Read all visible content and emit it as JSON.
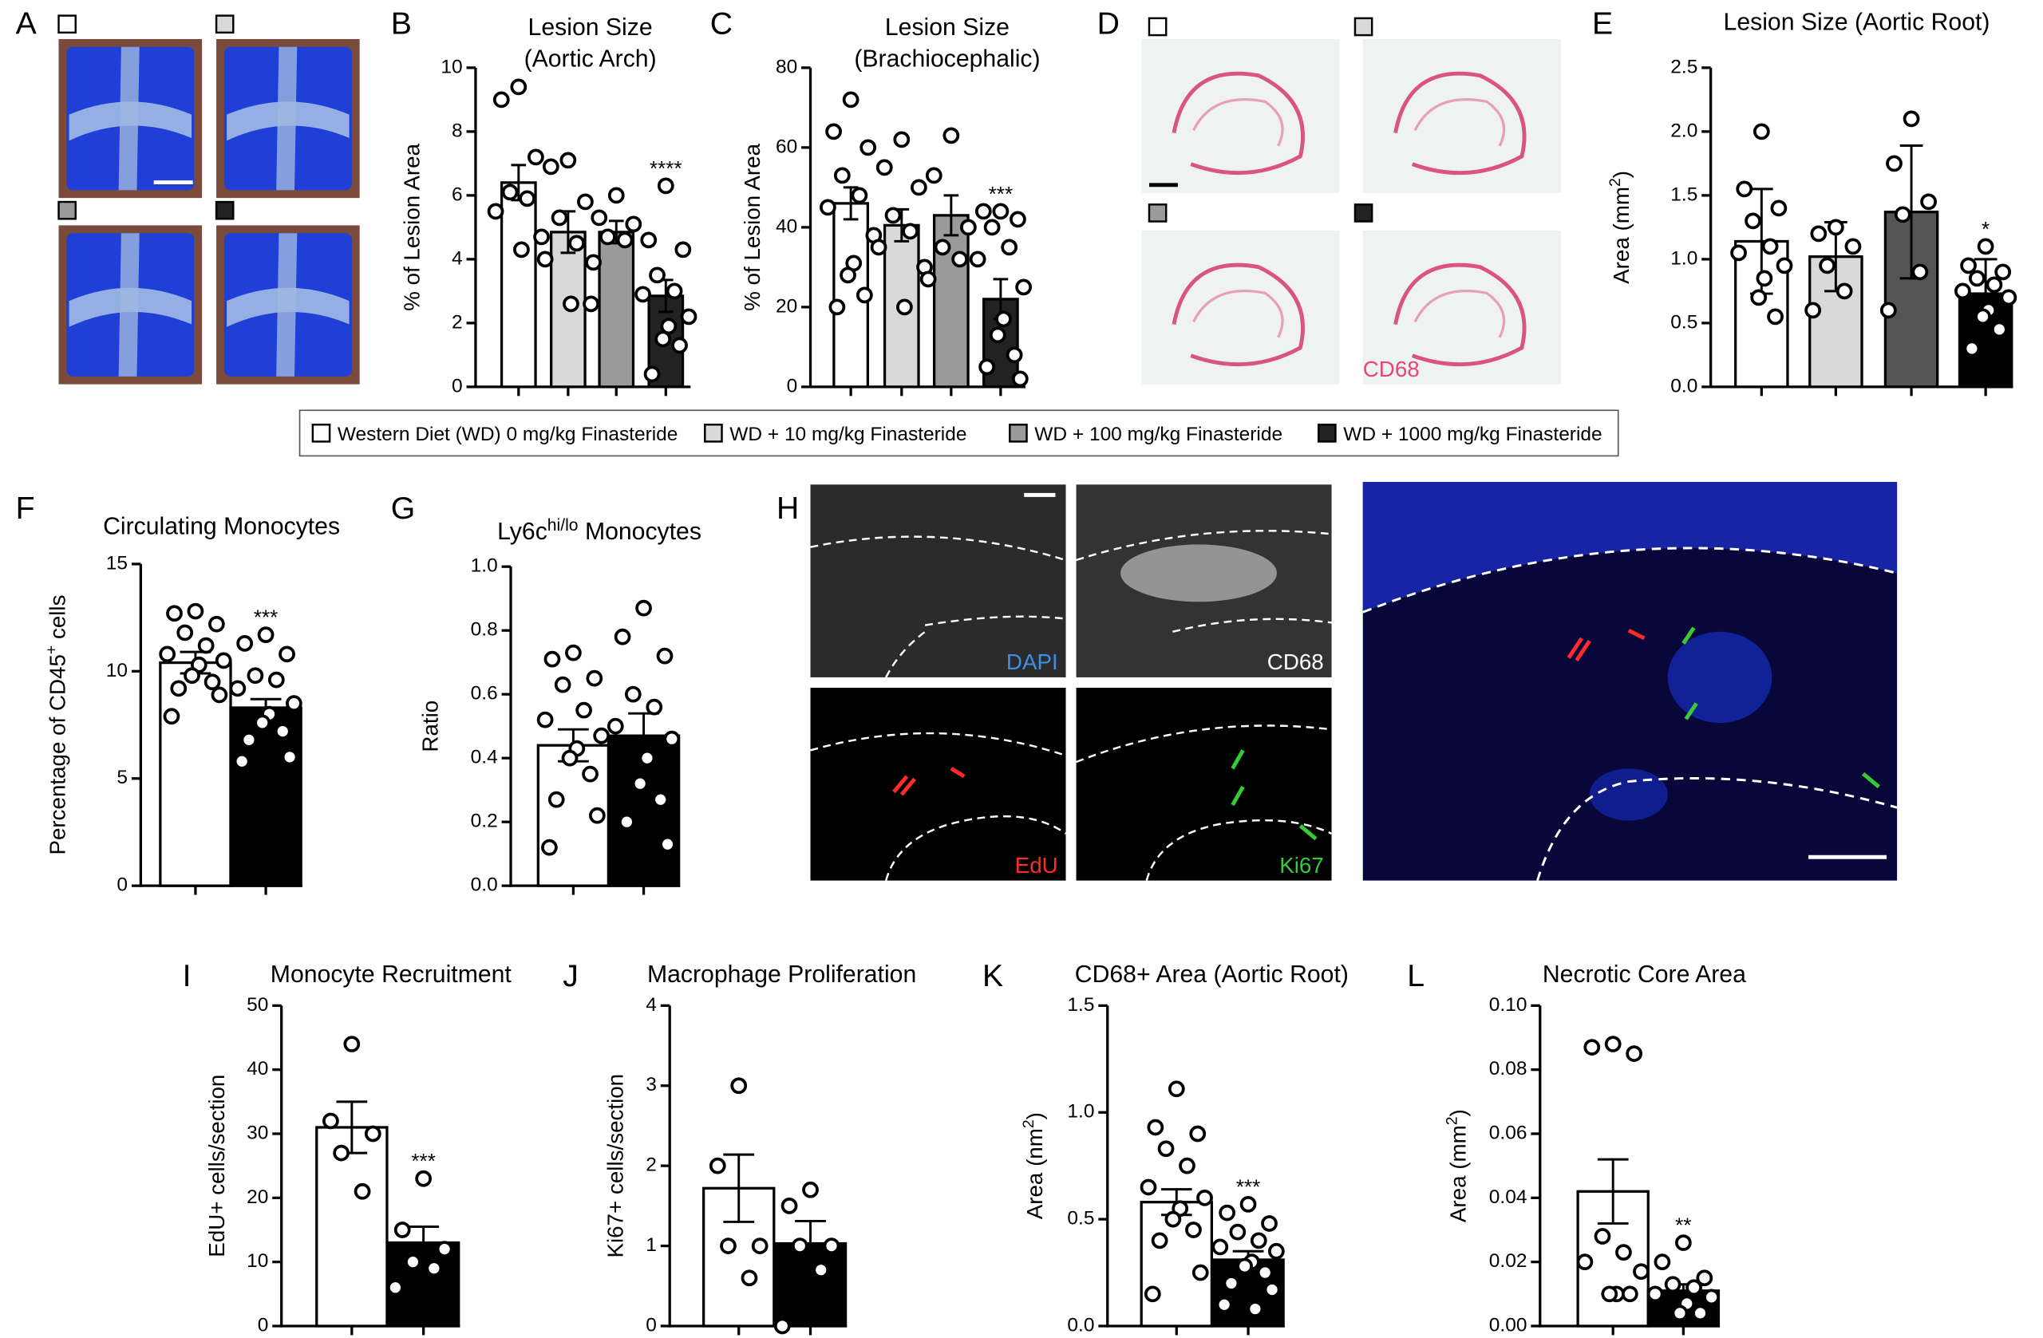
{
  "chart_data": [
    {
      "type": "bar",
      "panel": "B",
      "title_lines": [
        "Lesion Size",
        "(Aortic Arch)"
      ],
      "ylabel": "% of Lesion Area",
      "ylim": [
        0,
        10
      ],
      "yticks": [
        0,
        2,
        4,
        6,
        8,
        10
      ],
      "colors": [
        "#ffffff",
        "#d9d9d9",
        "#9a9a9a",
        "#222222"
      ],
      "values": [
        6.4,
        4.85,
        4.85,
        2.85
      ],
      "errors": [
        0.55,
        0.65,
        0.35,
        0.5
      ],
      "points": [
        [
          9.4,
          9.0,
          7.2,
          6.1,
          5.9,
          5.5,
          4.7,
          4.3
        ],
        [
          7.1,
          6.9,
          5.8,
          5.3,
          4.5,
          4.0,
          2.6,
          2.6
        ],
        [
          6.0,
          5.3,
          5.1,
          4.7,
          4.6,
          3.9
        ],
        [
          6.3,
          4.6,
          4.3,
          3.5,
          3.0,
          2.9,
          2.2,
          1.9,
          1.5,
          1.3,
          0.4
        ]
      ],
      "annotations": [
        null,
        null,
        null,
        "****"
      ]
    },
    {
      "type": "bar",
      "panel": "C",
      "title_lines": [
        "Lesion Size",
        "(Brachiocephalic)"
      ],
      "ylabel": "% of Lesion Area",
      "ylim": [
        0,
        80
      ],
      "yticks": [
        0,
        20,
        40,
        60,
        80
      ],
      "colors": [
        "#ffffff",
        "#d9d9d9",
        "#9a9a9a",
        "#222222"
      ],
      "values": [
        46,
        40.5,
        43,
        22
      ],
      "errors": [
        4,
        4,
        5,
        5
      ],
      "points": [
        [
          72,
          64,
          60,
          53,
          48,
          45,
          38,
          31,
          28,
          23,
          20
        ],
        [
          62,
          55,
          50,
          43,
          39,
          35,
          30,
          20
        ],
        [
          63,
          53,
          40,
          35,
          32,
          27
        ],
        [
          44,
          44,
          42,
          40,
          35,
          32,
          25,
          17,
          13,
          8,
          5,
          2
        ]
      ],
      "annotations": [
        null,
        null,
        null,
        "***"
      ]
    },
    {
      "type": "bar",
      "panel": "E",
      "title": "Lesion Size (Aortic Root)",
      "ylabel_parts": [
        {
          "text": "Area (mm"
        },
        {
          "text": "2",
          "sup": true
        },
        {
          "text": ")"
        }
      ],
      "ylim": [
        0,
        2.5
      ],
      "yticks": [
        {
          "value": 0,
          "label": "0.0"
        },
        0.5,
        {
          "value": 1,
          "label": "1.0"
        },
        1.5,
        {
          "value": 2,
          "label": "2.0"
        },
        2.5
      ],
      "colors": [
        "#ffffff",
        "#d9d9d9",
        "#555555",
        "#000000"
      ],
      "values": [
        1.14,
        1.02,
        1.37,
        0.73
      ],
      "errors": [
        0.41,
        0.27,
        0.52,
        0.27
      ],
      "points": [
        [
          2.0,
          1.55,
          1.4,
          1.3,
          1.1,
          1.05,
          0.95,
          0.85,
          0.7,
          0.55
        ],
        [
          1.25,
          1.2,
          1.1,
          0.95,
          0.75,
          0.6
        ],
        [
          2.1,
          1.75,
          1.45,
          1.35,
          0.9,
          0.6
        ],
        [
          1.1,
          0.95,
          0.9,
          0.85,
          0.8,
          0.75,
          0.7,
          0.6,
          0.55,
          0.45,
          0.3
        ]
      ],
      "annotations": [
        null,
        null,
        null,
        "*"
      ]
    },
    {
      "type": "bar",
      "panel": "F",
      "title": "Circulating Monocytes",
      "ylabel_parts": [
        {
          "text": "Percentage of CD45"
        },
        {
          "text": "+",
          "sup": true
        },
        {
          "text": " cells"
        }
      ],
      "ylim": [
        0,
        15
      ],
      "yticks": [
        0,
        5,
        10,
        15
      ],
      "colors": [
        "#ffffff",
        "#000000"
      ],
      "values": [
        10.4,
        8.3
      ],
      "errors": [
        0.5,
        0.4
      ],
      "points": [
        [
          12.8,
          12.7,
          12.2,
          11.8,
          11.2,
          10.8,
          10.5,
          10.3,
          9.8,
          9.5,
          9.2,
          8.9,
          7.9
        ],
        [
          11.7,
          11.3,
          10.8,
          9.8,
          9.6,
          9.2,
          8.5,
          8.0,
          7.6,
          7.2,
          6.8,
          6.0,
          5.8
        ]
      ],
      "annotations": [
        null,
        "***"
      ]
    },
    {
      "type": "bar",
      "panel": "G",
      "title_parts": [
        {
          "text": "Ly6c"
        },
        {
          "text": "hi/lo",
          "sup": true
        },
        {
          "text": " Monocytes"
        }
      ],
      "ylabel": "Ratio",
      "ylim": [
        0,
        1
      ],
      "yticks": [
        {
          "value": 0,
          "label": "0.0"
        },
        0.2,
        0.4,
        0.6,
        0.8,
        {
          "value": 1,
          "label": "1.0"
        }
      ],
      "colors": [
        "#ffffff",
        "#000000"
      ],
      "values": [
        0.44,
        0.47
      ],
      "errors": [
        0.05,
        0.07
      ],
      "points": [
        [
          0.73,
          0.71,
          0.65,
          0.63,
          0.55,
          0.52,
          0.47,
          0.43,
          0.4,
          0.35,
          0.27,
          0.22,
          0.12
        ],
        [
          0.87,
          0.78,
          0.72,
          0.6,
          0.56,
          0.5,
          0.46,
          0.4,
          0.32,
          0.27,
          0.2,
          0.13
        ]
      ],
      "annotations": [
        null,
        null
      ]
    },
    {
      "type": "bar",
      "panel": "I",
      "title": "Monocyte Recruitment",
      "ylabel": "EdU+ cells/section",
      "ylim": [
        0,
        50
      ],
      "yticks": [
        0,
        10,
        20,
        30,
        40,
        50
      ],
      "colors": [
        "#ffffff",
        "#000000"
      ],
      "values": [
        31,
        13
      ],
      "errors": [
        4,
        2.5
      ],
      "points": [
        [
          44,
          32,
          30,
          27,
          21
        ],
        [
          23,
          15,
          12,
          10,
          9,
          6
        ]
      ],
      "annotations": [
        null,
        "***"
      ]
    },
    {
      "type": "bar",
      "panel": "J",
      "title": "Macrophage Proliferation",
      "ylabel": "Ki67+ cells/section",
      "ylim": [
        0,
        4
      ],
      "yticks": [
        0,
        1,
        2,
        3,
        4
      ],
      "colors": [
        "#ffffff",
        "#000000"
      ],
      "values": [
        1.72,
        1.03
      ],
      "errors": [
        0.42,
        0.28
      ],
      "points": [
        [
          3.0,
          2.0,
          1.0,
          1.0,
          0.6
        ],
        [
          1.7,
          1.5,
          1.0,
          1.0,
          0.7,
          0.0
        ]
      ],
      "annotations": [
        null,
        null
      ]
    },
    {
      "type": "bar",
      "panel": "K",
      "title": "CD68+ Area (Aortic Root)",
      "ylabel_parts": [
        {
          "text": "Area (nm"
        },
        {
          "text": "2",
          "sup": true
        },
        {
          "text": ")"
        }
      ],
      "ylim": [
        0,
        1.5
      ],
      "yticks": [
        {
          "value": 0,
          "label": "0.0"
        },
        0.5,
        {
          "value": 1,
          "label": "1.0"
        },
        1.5
      ],
      "colors": [
        "#ffffff",
        "#000000"
      ],
      "values": [
        0.58,
        0.31
      ],
      "errors": [
        0.06,
        0.04
      ],
      "points": [
        [
          1.11,
          0.93,
          0.9,
          0.83,
          0.75,
          0.65,
          0.6,
          0.55,
          0.5,
          0.45,
          0.4,
          0.25,
          0.15
        ],
        [
          0.57,
          0.53,
          0.48,
          0.44,
          0.4,
          0.37,
          0.35,
          0.3,
          0.28,
          0.25,
          0.2,
          0.17,
          0.1,
          0.08
        ]
      ],
      "annotations": [
        null,
        "***"
      ]
    },
    {
      "type": "bar",
      "panel": "L",
      "title": "Necrotic Core Area",
      "ylabel_parts": [
        {
          "text": "Area (mm"
        },
        {
          "text": "2",
          "sup": true
        },
        {
          "text": ")"
        }
      ],
      "ylim": [
        0,
        0.1
      ],
      "yticks": [
        {
          "value": 0,
          "label": "0.00"
        },
        0.02,
        0.04,
        0.06,
        0.08,
        {
          "value": 0.1,
          "label": "0.10"
        }
      ],
      "colors": [
        "#ffffff",
        "#000000"
      ],
      "values": [
        0.042,
        0.011
      ],
      "errors": [
        0.01,
        0.002
      ],
      "points": [
        [
          0.088,
          0.087,
          0.085,
          0.028,
          0.023,
          0.02,
          0.017,
          0.01,
          0.01,
          0.01
        ],
        [
          0.026,
          0.02,
          0.015,
          0.013,
          0.012,
          0.01,
          0.009,
          0.007,
          0.004,
          0.004
        ]
      ],
      "annotations": [
        null,
        "**"
      ]
    }
  ],
  "legend": {
    "items": [
      {
        "label": "Western Diet (WD) 0 mg/kg Finasteride",
        "color": "#ffffff"
      },
      {
        "label": "WD + 10 mg/kg Finasteride",
        "color": "#d9d9d9"
      },
      {
        "label": "WD + 100 mg/kg Finasteride",
        "color": "#9a9a9a"
      },
      {
        "label": "WD + 1000 mg/kg Finasteride",
        "color": "#222222"
      }
    ]
  },
  "panel_A": {
    "label": "A"
  },
  "panel_D": {
    "label": "D",
    "stain": "CD68"
  },
  "panel_H": {
    "label": "H",
    "channels": [
      {
        "name": "DAPI",
        "color": "#3d8fe8"
      },
      {
        "name": "CD68",
        "color": "#ffffff"
      },
      {
        "name": "EdU",
        "color": "#ff2a2a"
      },
      {
        "name": "Ki67",
        "color": "#33cc33"
      }
    ]
  }
}
